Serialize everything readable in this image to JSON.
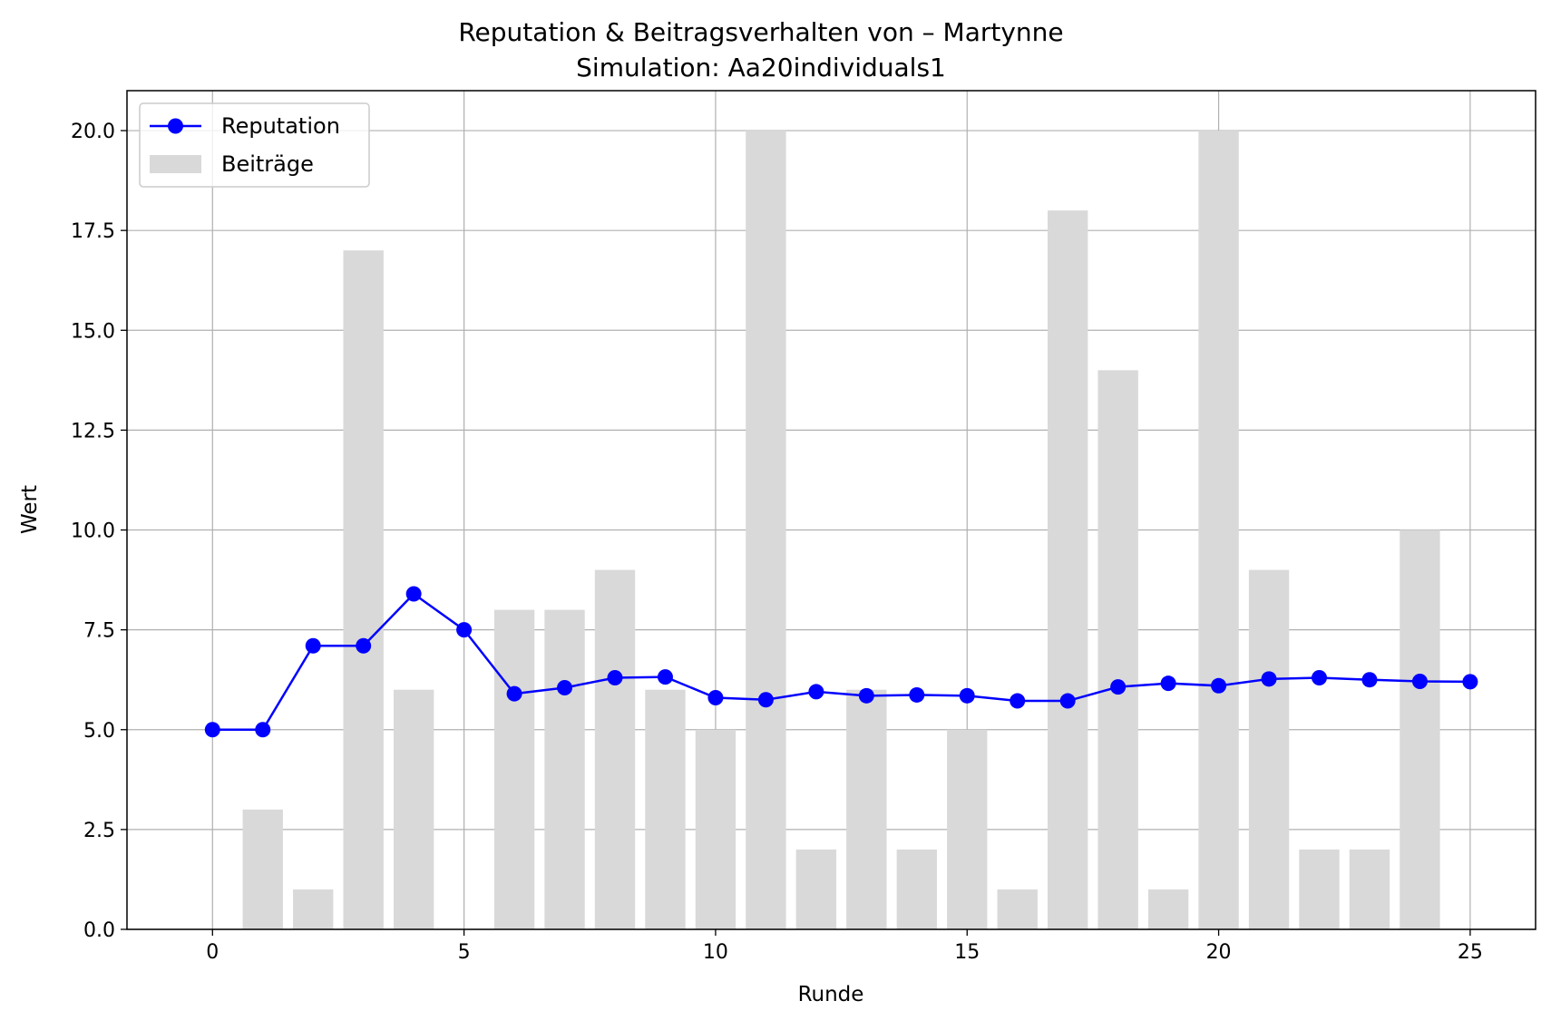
{
  "chart_data": {
    "type": "bar",
    "title": "Reputation & Beitragsverhalten von – Martynne",
    "subtitle": "Simulation: Aa20individuals1",
    "xlabel": "Runde",
    "ylabel": "Wert",
    "xlim": [
      -1.7,
      26.3
    ],
    "ylim": [
      0,
      21
    ],
    "x_ticks": [
      0,
      5,
      10,
      15,
      20,
      25
    ],
    "x_tick_labels": [
      "0",
      "5",
      "10",
      "15",
      "20",
      "25"
    ],
    "y_ticks": [
      0,
      2.5,
      5,
      7.5,
      10,
      12.5,
      15,
      17.5,
      20
    ],
    "y_tick_labels": [
      "0.0",
      "2.5",
      "5.0",
      "7.5",
      "10.0",
      "12.5",
      "15.0",
      "17.5",
      "20.0"
    ],
    "grid": true,
    "legend_position": "top-left",
    "x": [
      0,
      1,
      2,
      3,
      4,
      5,
      6,
      7,
      8,
      9,
      10,
      11,
      12,
      13,
      14,
      15,
      16,
      17,
      18,
      19,
      20,
      21,
      22,
      23,
      24,
      25
    ],
    "series": [
      {
        "name": "Beiträge",
        "type": "bar",
        "color": "#d9d9d9",
        "values": [
          0,
          3,
          1,
          17,
          6,
          0,
          8,
          8,
          9,
          6,
          5,
          20,
          2,
          6,
          2,
          5,
          1,
          18,
          14,
          1,
          20,
          9,
          2,
          2,
          10,
          0
        ]
      },
      {
        "name": "Reputation",
        "type": "line",
        "color": "#0000ff",
        "values": [
          5.0,
          5.0,
          7.1,
          7.1,
          8.4,
          7.5,
          5.9,
          6.05,
          6.3,
          6.32,
          5.8,
          5.75,
          5.95,
          5.85,
          5.87,
          5.85,
          5.72,
          5.72,
          6.07,
          6.16,
          6.1,
          6.27,
          6.3,
          6.25,
          6.21,
          6.2
        ]
      }
    ]
  }
}
